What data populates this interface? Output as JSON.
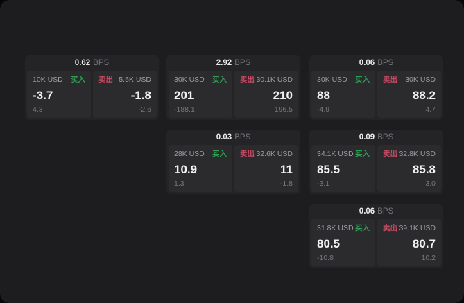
{
  "colors": {
    "buy_green": "#2f9e55",
    "sell_red": "#c44b63",
    "window_bg": "#1d1d1f"
  },
  "cards": [
    {
      "bps": "0.62",
      "bps_label": "BPS",
      "buy": {
        "amount": "10K USD",
        "label": "买入",
        "value": "-3.7",
        "sub": "4.3"
      },
      "sell": {
        "label": "卖出",
        "amount": "5.5K USD",
        "value": "-1.8",
        "sub": "-2.6"
      }
    },
    {
      "bps": "2.92",
      "bps_label": "BPS",
      "buy": {
        "amount": "30K USD",
        "label": "买入",
        "value": "201",
        "sub": "-188.1"
      },
      "sell": {
        "label": "卖出",
        "amount": "30.1K USD",
        "value": "210",
        "sub": "196.5"
      }
    },
    {
      "bps": "0.06",
      "bps_label": "BPS",
      "buy": {
        "amount": "30K USD",
        "label": "买入",
        "value": "88",
        "sub": "-4.9"
      },
      "sell": {
        "label": "卖出",
        "amount": "30K USD",
        "value": "88.2",
        "sub": "4.7"
      }
    },
    {
      "bps": "0.03",
      "bps_label": "BPS",
      "buy": {
        "amount": "28K USD",
        "label": "买入",
        "value": "10.9",
        "sub": "1.3"
      },
      "sell": {
        "label": "卖出",
        "amount": "32.6K USD",
        "value": "11",
        "sub": "-1.8"
      }
    },
    {
      "bps": "0.09",
      "bps_label": "BPS",
      "buy": {
        "amount": "34.1K USD",
        "label": "买入",
        "value": "85.5",
        "sub": "-3.1"
      },
      "sell": {
        "label": "卖出",
        "amount": "32.8K USD",
        "value": "85.8",
        "sub": "3.0"
      }
    },
    {
      "bps": "0.06",
      "bps_label": "BPS",
      "buy": {
        "amount": "31.8K USD",
        "label": "买入",
        "value": "80.5",
        "sub": "-10.8"
      },
      "sell": {
        "label": "卖出",
        "amount": "39.1K USD",
        "value": "80.7",
        "sub": "10.2"
      }
    }
  ]
}
